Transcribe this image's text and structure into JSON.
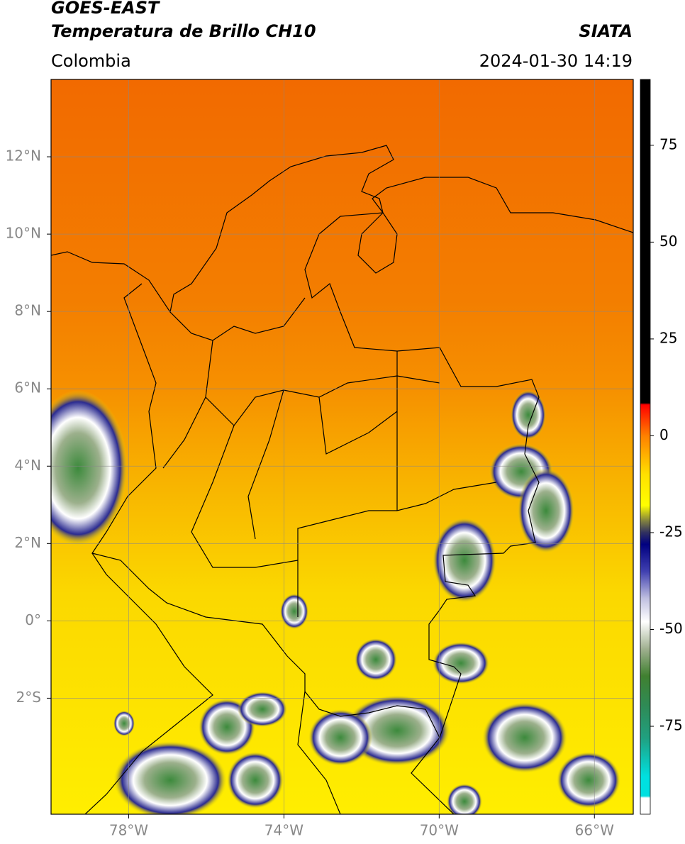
{
  "header": {
    "title": "GOES-EAST",
    "subtitle": "Temperatura de Brillo CH10",
    "source": "SIATA",
    "region": "Colombia",
    "timestamp": "2024-01-30 14:19"
  },
  "map": {
    "xlim": [
      -80,
      -65
    ],
    "ylim": [
      -5,
      14
    ],
    "grid": true,
    "xticks": [
      {
        "value": -78,
        "label": "78°W"
      },
      {
        "value": -74,
        "label": "74°W"
      },
      {
        "value": -70,
        "label": "70°W"
      },
      {
        "value": -66,
        "label": "66°W"
      }
    ],
    "yticks": [
      {
        "value": 12,
        "label": "12°N"
      },
      {
        "value": 10,
        "label": "10°N"
      },
      {
        "value": 8,
        "label": "8°N"
      },
      {
        "value": 6,
        "label": "6°N"
      },
      {
        "value": 4,
        "label": "4°N"
      },
      {
        "value": 2,
        "label": "2°N"
      },
      {
        "value": 0,
        "label": "0°"
      },
      {
        "value": -2,
        "label": "2°S"
      }
    ]
  },
  "colorbar": {
    "lim": [
      -97.7,
      92
    ],
    "ticks": [
      75,
      50,
      25,
      0,
      -25,
      -50,
      -75
    ],
    "stops": [
      {
        "value": 92,
        "color": "#000000"
      },
      {
        "value": 8.5,
        "color": "#000000"
      },
      {
        "value": 8,
        "color": "#ff0000"
      },
      {
        "value": 0,
        "color": "#ff8000"
      },
      {
        "value": -10,
        "color": "#ffe000"
      },
      {
        "value": -18,
        "color": "#ffff00"
      },
      {
        "value": -22,
        "color": "#808040"
      },
      {
        "value": -25,
        "color": "#303060"
      },
      {
        "value": -28,
        "color": "#000080"
      },
      {
        "value": -35,
        "color": "#4040b0"
      },
      {
        "value": -42,
        "color": "#c0c0e0"
      },
      {
        "value": -48,
        "color": "#ffffff"
      },
      {
        "value": -55,
        "color": "#a0b090"
      },
      {
        "value": -62,
        "color": "#408030"
      },
      {
        "value": -70,
        "color": "#2e8b57"
      },
      {
        "value": -78,
        "color": "#20a080"
      },
      {
        "value": -88,
        "color": "#00e0e0"
      },
      {
        "value": -93,
        "color": "#00e0e0"
      },
      {
        "value": -93.5,
        "color": "#ffffff"
      },
      {
        "value": -97.7,
        "color": "#ffffff"
      }
    ]
  }
}
